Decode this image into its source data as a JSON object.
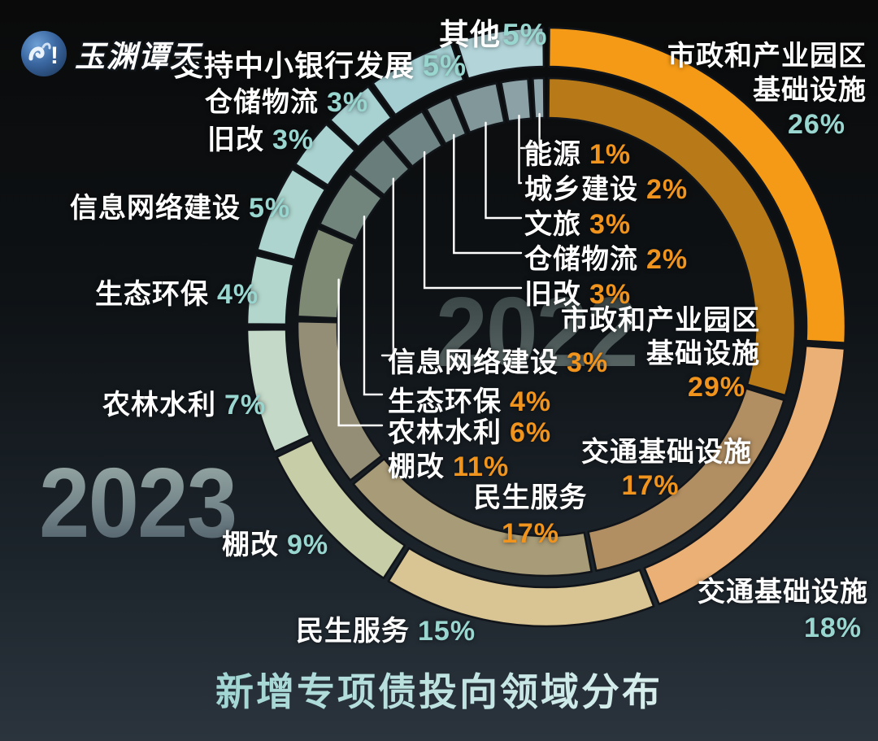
{
  "brand": {
    "name": "玉渊谭天",
    "badge_mark": "!"
  },
  "title": "新增专项债投向领域分布",
  "percent_colors": {
    "outer_year": "#9ad6d0",
    "inner_year": "#f0941e"
  },
  "chart_data": {
    "type": "donut",
    "title": "新增专项债投向领域分布",
    "subtitle": "",
    "legend_position": "none",
    "rings": [
      {
        "year": "2023",
        "position": "outer",
        "start_angle_deg": 0,
        "segments": [
          {
            "label": "市政和产业园区基础设施",
            "label_lines": [
              "市政和产业园区",
              "基础设施"
            ],
            "value": 26,
            "pct": "26%",
            "color": "#f59a16"
          },
          {
            "label": "交通基础设施",
            "value": 18,
            "pct": "18%",
            "color": "#eab075"
          },
          {
            "label": "民生服务",
            "value": 15,
            "pct": "15%",
            "color": "#d9c593"
          },
          {
            "label": "棚改",
            "value": 9,
            "pct": "9%",
            "color": "#c7cda6"
          },
          {
            "label": "农林水利",
            "value": 7,
            "pct": "7%",
            "color": "#c5d9c9"
          },
          {
            "label": "生态环保",
            "value": 4,
            "pct": "4%",
            "color": "#b2d6cc"
          },
          {
            "label": "信息网络建设",
            "value": 5,
            "pct": "5%",
            "color": "#add4ce"
          },
          {
            "label": "旧改",
            "value": 3,
            "pct": "3%",
            "color": "#aad2d0"
          },
          {
            "label": "仓储物流",
            "value": 3,
            "pct": "3%",
            "color": "#a8d1d2"
          },
          {
            "label": "支持中小银行发展",
            "value": 5,
            "pct": "5%",
            "color": "#a5cfd3"
          },
          {
            "label": "其他",
            "value": 5,
            "pct": "5%",
            "color": "#b3d5da"
          }
        ]
      },
      {
        "year": "2022",
        "position": "inner",
        "start_angle_deg": 0,
        "segments": [
          {
            "label": "市政和产业园区基础设施",
            "label_lines": [
              "市政和产业园区",
              "基础设施"
            ],
            "value": 29,
            "pct": "29%",
            "color": "#b87a18"
          },
          {
            "label": "交通基础设施",
            "value": 17,
            "pct": "17%",
            "color": "#b28f63"
          },
          {
            "label": "民生服务",
            "value": 17,
            "pct": "17%",
            "color": "#a89b77"
          },
          {
            "label": "棚改",
            "value": 11,
            "pct": "11%",
            "color": "#948e77"
          },
          {
            "label": "农林水利",
            "value": 6,
            "pct": "6%",
            "color": "#7f8a74"
          },
          {
            "label": "生态环保",
            "value": 4,
            "pct": "4%",
            "color": "#71857d"
          },
          {
            "label": "信息网络建设",
            "value": 3,
            "pct": "3%",
            "color": "#697d7b"
          },
          {
            "label": "旧改",
            "value": 3,
            "pct": "3%",
            "color": "#6f8484"
          },
          {
            "label": "仓储物流",
            "value": 2,
            "pct": "2%",
            "color": "#778c8d"
          },
          {
            "label": "文旅",
            "value": 3,
            "pct": "3%",
            "color": "#829799"
          },
          {
            "label": "城乡建设",
            "value": 2,
            "pct": "2%",
            "color": "#8ba1a6"
          },
          {
            "label": "能源",
            "value": 1,
            "pct": "1%",
            "color": "#90a7ad"
          }
        ]
      }
    ]
  }
}
